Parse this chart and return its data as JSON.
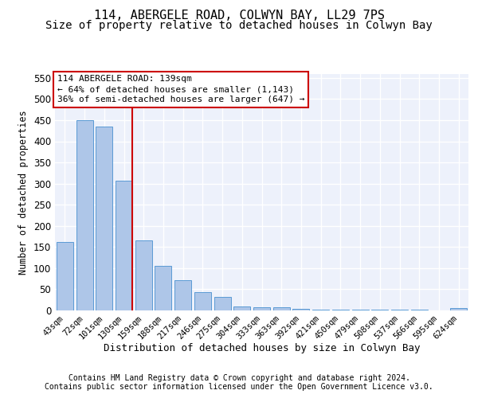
{
  "title1": "114, ABERGELE ROAD, COLWYN BAY, LL29 7PS",
  "title2": "Size of property relative to detached houses in Colwyn Bay",
  "xlabel": "Distribution of detached houses by size in Colwyn Bay",
  "ylabel": "Number of detached properties",
  "categories": [
    "43sqm",
    "72sqm",
    "101sqm",
    "130sqm",
    "159sqm",
    "188sqm",
    "217sqm",
    "246sqm",
    "275sqm",
    "304sqm",
    "333sqm",
    "363sqm",
    "392sqm",
    "421sqm",
    "450sqm",
    "479sqm",
    "508sqm",
    "537sqm",
    "566sqm",
    "595sqm",
    "624sqm"
  ],
  "values": [
    162,
    450,
    435,
    307,
    165,
    105,
    72,
    43,
    32,
    9,
    7,
    7,
    4,
    2,
    2,
    2,
    2,
    1,
    1,
    0,
    5
  ],
  "bar_color": "#aec6e8",
  "bar_edge_color": "#5b9bd5",
  "vline_index": 3,
  "vline_color": "#cc0000",
  "annotation_line1": "114 ABERGELE ROAD: 139sqm",
  "annotation_line2": "← 64% of detached houses are smaller (1,143)",
  "annotation_line3": "36% of semi-detached houses are larger (647) →",
  "annotation_box_facecolor": "#ffffff",
  "annotation_box_edgecolor": "#cc0000",
  "ylim": [
    0,
    560
  ],
  "yticks": [
    0,
    50,
    100,
    150,
    200,
    250,
    300,
    350,
    400,
    450,
    500,
    550
  ],
  "footer1": "Contains HM Land Registry data © Crown copyright and database right 2024.",
  "footer2": "Contains public sector information licensed under the Open Government Licence v3.0.",
  "bg_color": "#edf1fb",
  "grid_color": "#ffffff",
  "title1_fontsize": 11,
  "title2_fontsize": 10,
  "tick_fontsize": 7.5,
  "ylabel_fontsize": 8.5,
  "xlabel_fontsize": 9,
  "annot_fontsize": 8,
  "footer_fontsize": 7
}
